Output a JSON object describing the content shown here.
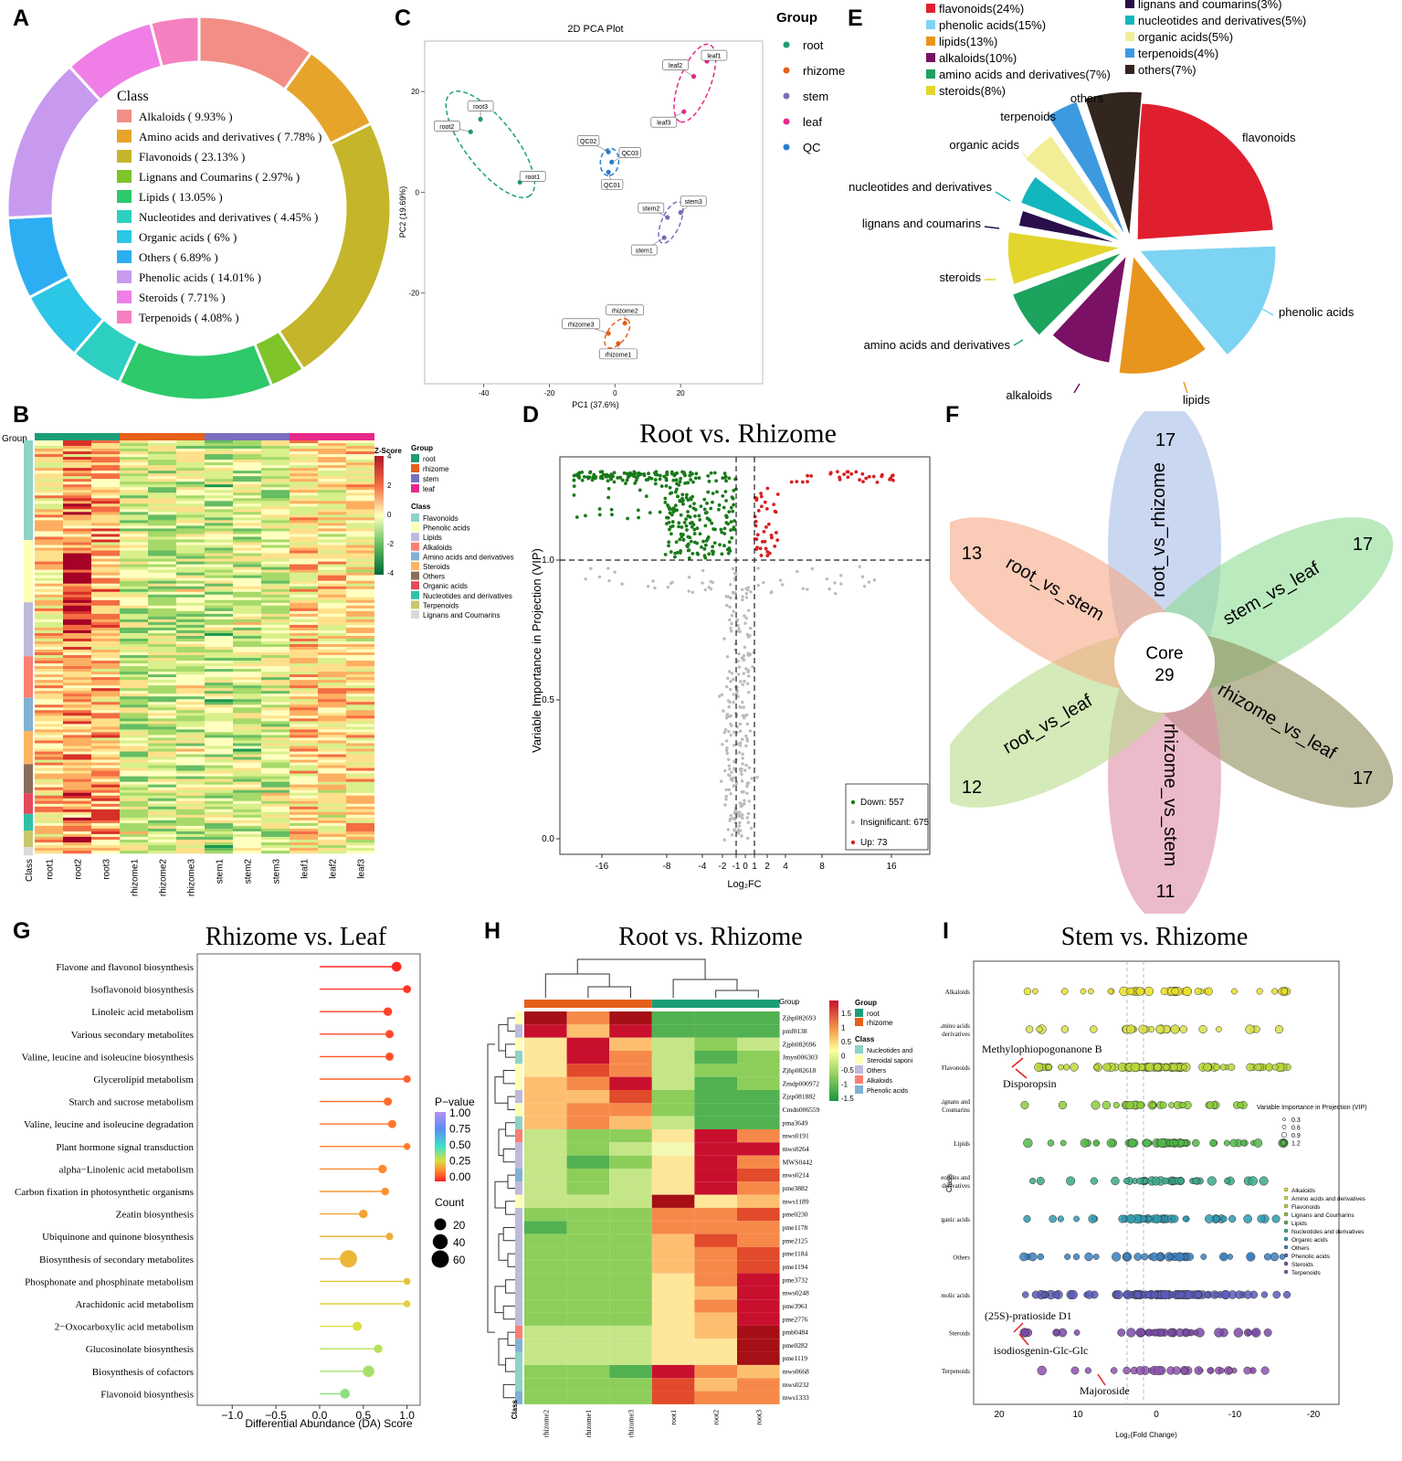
{
  "panel_labels": [
    "A",
    "B",
    "C",
    "D",
    "E",
    "F",
    "G",
    "H",
    "I"
  ],
  "colors": {
    "alkaloids": "#f28e85",
    "amino": "#e6a52a",
    "flavonoids": "#c5b52a",
    "lignans": "#7ec42a",
    "lipids": "#2dc96a",
    "nucleotides": "#2dd0c0",
    "organic": "#2cc6e6",
    "others": "#2eaef2",
    "phenolic": "#c79af0",
    "steroids": "#ef7fe6",
    "terpenoids": "#f580c0",
    "root": "#1b9e77",
    "rhizome": "#e6601a",
    "stem": "#7a6fbf",
    "leaf": "#e7298a",
    "qc": "#2a7fd0"
  },
  "chart_data": [
    {
      "id": "A",
      "type": "pie",
      "subtype": "donut",
      "legend_title": "Class",
      "categories": [
        "Alkaloids",
        "Amino acids and derivatives",
        "Flavonoids",
        "Lignans and Coumarins",
        "Lipids",
        "Nucleotides and derivatives",
        "Organic acids",
        "Others",
        "Phenolic acids",
        "Steroids",
        "Terpenoids"
      ],
      "values": [
        9.93,
        7.78,
        23.13,
        2.97,
        13.05,
        4.45,
        6,
        6.89,
        14.01,
        7.71,
        4.08
      ],
      "legend_labels": [
        "Alkaloids ( 9.93% )",
        "Amino acids and derivatives ( 7.78% )",
        "Flavonoids ( 23.13% )",
        "Lignans and Coumarins ( 2.97% )",
        "Lipids ( 13.05% )",
        "Nucleotides and derivatives ( 4.45% )",
        "Organic acids ( 6% )",
        "Others ( 6.89% )",
        "Phenolic acids ( 14.01% )",
        "Steroids ( 7.71% )",
        "Terpenoids ( 4.08% )"
      ]
    },
    {
      "id": "B",
      "type": "heatmap",
      "group_label": "Group",
      "class_label": "Class",
      "zscore_title": "Z-Score",
      "zscore_ticks": [
        "4",
        "2",
        "0",
        "-2",
        "-4"
      ],
      "group_legend_title": "Group",
      "groups": [
        "root",
        "rhizome",
        "stem",
        "leaf"
      ],
      "class_legend_title": "Class",
      "classes": [
        "Flavonoids",
        "Phenolic acids",
        "Lipids",
        "Alkaloids",
        "Amino acids and derivatives",
        "Steroids",
        "Others",
        "Organic acids",
        "Nucleotides and derivatives",
        "Terpenoids",
        "Lignans and Coumarins"
      ],
      "columns": [
        "root1",
        "root2",
        "root3",
        "rhizome1",
        "rhizome2",
        "rhizome3",
        "stem1",
        "stem2",
        "stem3",
        "leaf1",
        "leaf2",
        "leaf3"
      ],
      "first_axis_label": "Class"
    },
    {
      "id": "C",
      "type": "scatter",
      "title": "2D PCA Plot",
      "xlabel": "PC1 (37.6%)",
      "ylabel": "PC2 (19.69%)",
      "xlim": [
        -58,
        45
      ],
      "ylim": [
        -38,
        30
      ],
      "xticks": [
        -40,
        -20,
        0,
        20
      ],
      "yticks": [
        20,
        0,
        -20
      ],
      "legend_title": "Group",
      "legend": [
        "root",
        "rhizome",
        "stem",
        "leaf",
        "QC"
      ],
      "points": [
        {
          "label": "root1",
          "group": "root",
          "x": -29,
          "y": 2
        },
        {
          "label": "root2",
          "group": "root",
          "x": -44,
          "y": 12
        },
        {
          "label": "root3",
          "group": "root",
          "x": -41,
          "y": 14.5
        },
        {
          "label": "rhizome1",
          "group": "rhizome",
          "x": 1,
          "y": -30
        },
        {
          "label": "rhizome2",
          "group": "rhizome",
          "x": 3,
          "y": -26
        },
        {
          "label": "rhizome3",
          "group": "rhizome",
          "x": -2,
          "y": -28
        },
        {
          "label": "stem1",
          "group": "stem",
          "x": 15,
          "y": -9
        },
        {
          "label": "stem2",
          "group": "stem",
          "x": 16,
          "y": -5
        },
        {
          "label": "stem3",
          "group": "stem",
          "x": 20,
          "y": -4
        },
        {
          "label": "leaf1",
          "group": "leaf",
          "x": 28,
          "y": 26
        },
        {
          "label": "leaf2",
          "group": "leaf",
          "x": 24,
          "y": 23
        },
        {
          "label": "leaf3",
          "group": "leaf",
          "x": 21,
          "y": 16
        },
        {
          "label": "QC01",
          "group": "QC",
          "x": -2,
          "y": 4
        },
        {
          "label": "QC02",
          "group": "QC",
          "x": -2,
          "y": 8
        },
        {
          "label": "QC03",
          "group": "QC",
          "x": -1,
          "y": 6
        }
      ]
    },
    {
      "id": "D",
      "type": "scatter",
      "subtype": "volcano",
      "title": "Root vs. Rhizome",
      "xlabel": "Log₂FC",
      "ylabel": "Variable Importance in Projection (VIP)",
      "xticks": [
        "-16",
        "-8",
        "-4",
        "-2",
        "-1",
        "0",
        "1",
        "2",
        "4",
        "8",
        "16"
      ],
      "yticks": [
        "0.0",
        "0.5",
        "1.0"
      ],
      "legend": [
        "Down: 557",
        "Insignificant: 675",
        "Up: 73"
      ],
      "counts": {
        "down": 557,
        "insignificant": 675,
        "up": 73
      }
    },
    {
      "id": "E",
      "type": "pie",
      "subtype": "exploded",
      "legend": [
        "flavonoids(24%)",
        "phenolic acids(15%)",
        "lipids(13%)",
        "alkaloids(10%)",
        "amino acids and derivatives(7%)",
        "steroids(8%)",
        "lignans and coumarins(3%)",
        "nucleotides and derivatives(5%)",
        "organic acids(5%)",
        "terpenoids(4%)",
        "others(7%)"
      ],
      "categories": [
        "flavonoids",
        "phenolic acids",
        "lipids",
        "alkaloids",
        "amino acids and derivatives",
        "steroids",
        "lignans and coumarins",
        "nucleotides and derivatives",
        "organic acids",
        "terpenoids",
        "others"
      ],
      "values": [
        24,
        15,
        13,
        10,
        7,
        8,
        3,
        5,
        5,
        4,
        7
      ],
      "slice_colors": [
        "#e01f2e",
        "#7dd3f2",
        "#e8951e",
        "#7b1164",
        "#1ca35e",
        "#e2d62c",
        "#2a0e4a",
        "#13b6bc",
        "#f2ee98",
        "#3d9ae0",
        "#33261f"
      ]
    },
    {
      "id": "F",
      "type": "venn",
      "subtype": "flower",
      "core_label": "Core",
      "core_value": "29",
      "petals": [
        {
          "name": "root_vs_rhizome",
          "count": "17"
        },
        {
          "name": "stem_vs_leaf",
          "count": "17"
        },
        {
          "name": "rhizome_vs_leaf",
          "count": "17"
        },
        {
          "name": "rhizome_vs_stem",
          "count": "11"
        },
        {
          "name": "root_vs_leaf",
          "count": "12"
        },
        {
          "name": "root_vs_stem",
          "count": "13"
        }
      ]
    },
    {
      "id": "G",
      "type": "scatter",
      "subtype": "lollipop",
      "title": "Rhizome vs. Leaf",
      "xlabel": "Differential Abundance (DA) Score",
      "xlim": [
        -1.4,
        1.15
      ],
      "xticks": [
        -1.0,
        -0.5,
        0.0,
        0.5,
        1.0
      ],
      "xtick_labels": [
        "−1.0",
        "−0.5",
        "0.0",
        "0.5",
        "1.0"
      ],
      "pvalue_title": "P−value",
      "pvalue_ticks": [
        "1.00",
        "0.75",
        "0.50",
        "0.25",
        "0.00"
      ],
      "count_title": "Count",
      "count_ticks": [
        "20",
        "40",
        "60"
      ],
      "categories": [
        "Flavone and flavonol biosynthesis",
        "Isoflavonoid biosynthesis",
        "Linoleic acid metabolism",
        "Various secondary metabolites",
        "Valine, leucine and isoleucine biosynthesis",
        "Glycerolipid metabolism",
        "Starch and sucrose metabolism",
        "Valine, leucine and isoleucine degradation",
        "Plant hormone signal transduction",
        "alpha−Linolenic acid metabolism",
        "Carbon fixation in photosynthetic organisms",
        "Zeatin biosynthesis",
        "Ubiquinone and quinone biosynthesis",
        "Biosynthesis of secondary metabolites",
        "Phosphonate and phosphinate metabolism",
        "Arachidonic acid metabolism",
        "2−Oxocarboxylic acid metabolism",
        "Glucosinolate biosynthesis",
        "Biosynthesis of cofactors",
        "Flavonoid biosynthesis"
      ],
      "values": [
        0.88,
        1.0,
        0.78,
        0.8,
        0.8,
        1.0,
        0.78,
        0.83,
        1.0,
        0.72,
        0.75,
        0.5,
        0.8,
        0.33,
        1.0,
        1.0,
        0.43,
        0.67,
        0.56,
        0.29
      ],
      "pvalues": [
        0.02,
        0.05,
        0.08,
        0.1,
        0.12,
        0.15,
        0.18,
        0.2,
        0.22,
        0.25,
        0.28,
        0.32,
        0.35,
        0.38,
        0.42,
        0.45,
        0.5,
        0.55,
        0.58,
        0.62
      ],
      "counts": [
        10,
        4,
        6,
        5,
        5,
        3,
        5,
        5,
        2,
        6,
        4,
        6,
        3,
        60,
        2,
        2,
        8,
        6,
        18,
        10
      ]
    },
    {
      "id": "H",
      "type": "heatmap",
      "title": "Root vs. Rhizome",
      "group_label": "Group",
      "class_axis_label": "Class",
      "columns": [
        "rhizome2",
        "rhizome1",
        "rhizome3",
        "root1",
        "root2",
        "root3"
      ],
      "rows": [
        "Zjhp082693",
        "pmf0138",
        "Zjph082696",
        "Jmyn006303",
        "Zjhp082618",
        "Zmdp000972",
        "Zjzp081882",
        "Cmdn006559",
        "pma3649",
        "mws0191",
        "mws0264",
        "MWS0442",
        "mws0214",
        "pme3882",
        "mws1189",
        "pme0230",
        "pme1178",
        "pme2125",
        "pme1184",
        "pme1194",
        "pme3732",
        "mws0248",
        "pme3961",
        "pme2776",
        "pmb0484",
        "pme0282",
        "pme1119",
        "mws0668",
        "mws0232",
        "mws1333"
      ],
      "scale_ticks": [
        "1.5",
        "1",
        "0.5",
        "0",
        "-0.5",
        "-1",
        "-1.5"
      ],
      "group_legend_title": "Group",
      "groups": [
        "root",
        "rhizome"
      ],
      "class_legend_title": "Class",
      "classes": [
        "Nucleotides and",
        "Steroidal saponi",
        "Others",
        "Alkaloids",
        "Phenolic acids"
      ]
    },
    {
      "id": "I",
      "type": "scatter",
      "subtype": "bubble",
      "title": "Stem vs. Rhizome",
      "xlabel": "Log₂(Fold Change)",
      "ylabel": "Class",
      "xticks": [
        "20",
        "10",
        "0",
        "-10",
        "-20"
      ],
      "categories": [
        "Alkaloids",
        "Amino acids and derivatives",
        "Flavonoids",
        "Lignans and Coumarins",
        "Lipids",
        "Nucleotides and derivatives",
        "Organic acids",
        "Others",
        "Phenolic acids",
        "Steroids",
        "Terpenoids"
      ],
      "category_labels": [
        [
          "Alkaloids"
        ],
        [
          "Amino acids",
          "and derivatives"
        ],
        [
          "Flavonoids"
        ],
        [
          "Lignans and",
          "Coumarins"
        ],
        [
          "Lipids"
        ],
        [
          "Nucleotides and",
          "derivatives"
        ],
        [
          "Organic acids"
        ],
        [
          "Others"
        ],
        [
          "Phenolic acids"
        ],
        [
          "Steroids"
        ],
        [
          "Terpenoids"
        ]
      ],
      "vip_legend_title": "Variable Importance in Projection (VIP)",
      "vip_ticks": [
        "0.3",
        "0.6",
        "0.9",
        "1.2"
      ],
      "class_legend": [
        "Alkaloids",
        "Amino acids and derivatives",
        "Flavonoids",
        "Lignans and Coumarins",
        "Lipids",
        "Nucleotides and derivatives",
        "Organic acids",
        "Others",
        "Phenolic acids",
        "Steroids",
        "Terpenoids"
      ],
      "annotations": [
        "Methylophiopogonanone B",
        "Disporopsin",
        "(25S)-pratioside D1",
        "isodiosgenin-Glc-Glc",
        "Majoroside"
      ]
    }
  ]
}
